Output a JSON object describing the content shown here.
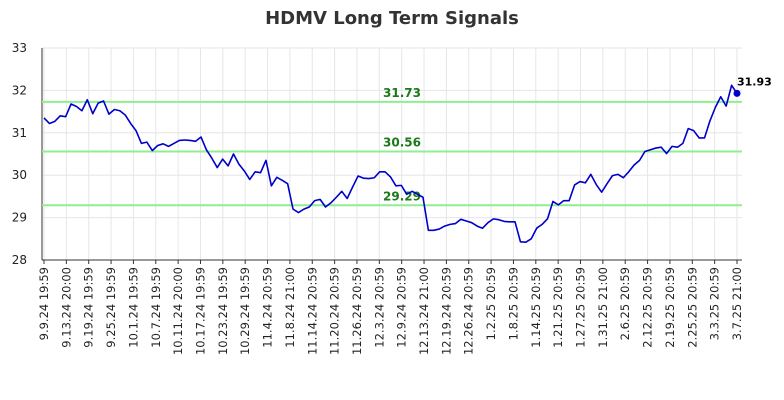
{
  "chart_data": {
    "type": "line",
    "title": "HDMV Long Term Signals",
    "xlabel": "",
    "ylabel": "",
    "ylim": [
      28,
      33
    ],
    "yticks": [
      "28",
      "29",
      "30",
      "31",
      "32",
      "33"
    ],
    "grid": true,
    "x_tick_labels": [
      "9.9.24 19:59",
      "9.13.24 20:00",
      "9.19.24 19:59",
      "9.25.24 19:59",
      "10.1.24 19:59",
      "10.7.24 19:59",
      "10.11.24 20:00",
      "10.17.24 19:59",
      "10.23.24 19:59",
      "10.29.24 19:59",
      "11.4.24 20:59",
      "11.8.24 21:00",
      "11.14.24 20:59",
      "11.20.24 20:59",
      "11.26.24 20:59",
      "12.3.24 20:59",
      "12.9.24 20:59",
      "12.13.24 21:00",
      "12.19.24 20:59",
      "12.26.24 20:59",
      "1.2.25 20:59",
      "1.8.25 20:59",
      "1.14.25 20:59",
      "1.21.25 20:59",
      "1.27.25 20:59",
      "1.31.25 21:00",
      "2.6.25 20:59",
      "2.12.25 20:59",
      "2.19.25 20:59",
      "2.25.25 20:59",
      "3.3.25 20:59",
      "3.7.25 21:00"
    ],
    "series": [
      {
        "color": "#0000cc",
        "values": [
          31.35,
          31.22,
          31.27,
          31.4,
          31.38,
          31.68,
          31.62,
          31.52,
          31.78,
          31.45,
          31.7,
          31.75,
          31.44,
          31.55,
          31.52,
          31.42,
          31.22,
          31.05,
          30.75,
          30.78,
          30.58,
          30.7,
          30.74,
          30.68,
          30.75,
          30.82,
          30.83,
          30.82,
          30.8,
          30.9,
          30.6,
          30.4,
          30.18,
          30.38,
          30.22,
          30.5,
          30.26,
          30.1,
          29.9,
          30.08,
          30.06,
          30.35,
          29.75,
          29.95,
          29.88,
          29.8,
          29.2,
          29.12,
          29.2,
          29.25,
          29.4,
          29.43,
          29.25,
          29.35,
          29.48,
          29.62,
          29.45,
          29.72,
          29.98,
          29.93,
          29.92,
          29.94,
          30.08,
          30.08,
          29.96,
          29.75,
          29.76,
          29.55,
          29.62,
          29.55,
          29.48,
          28.7,
          28.7,
          28.73,
          28.8,
          28.84,
          28.86,
          28.96,
          28.92,
          28.88,
          28.8,
          28.75,
          28.88,
          28.97,
          28.95,
          28.91,
          28.9,
          28.9,
          28.43,
          28.42,
          28.5,
          28.75,
          28.84,
          28.97,
          29.38,
          29.3,
          29.4,
          29.4,
          29.77,
          29.85,
          29.82,
          30.02,
          29.78,
          29.6,
          29.8,
          29.99,
          30.02,
          29.94,
          30.08,
          30.24,
          30.35,
          30.56,
          30.6,
          30.64,
          30.66,
          30.51,
          30.68,
          30.66,
          30.75,
          31.1,
          31.05,
          30.88,
          30.88,
          31.28,
          31.6,
          31.85,
          31.63,
          32.12,
          31.93
        ]
      }
    ],
    "horizontal_lines": [
      {
        "value": 31.73,
        "label": "31.73",
        "color": "#90ee90"
      },
      {
        "value": 30.56,
        "label": "30.56",
        "color": "#90ee90"
      },
      {
        "value": 29.29,
        "label": "29.29",
        "color": "#90ee90"
      }
    ],
    "last_value_label": "31.93",
    "last_point_color": "#0000cc",
    "label_color": "#1a7a1a"
  }
}
